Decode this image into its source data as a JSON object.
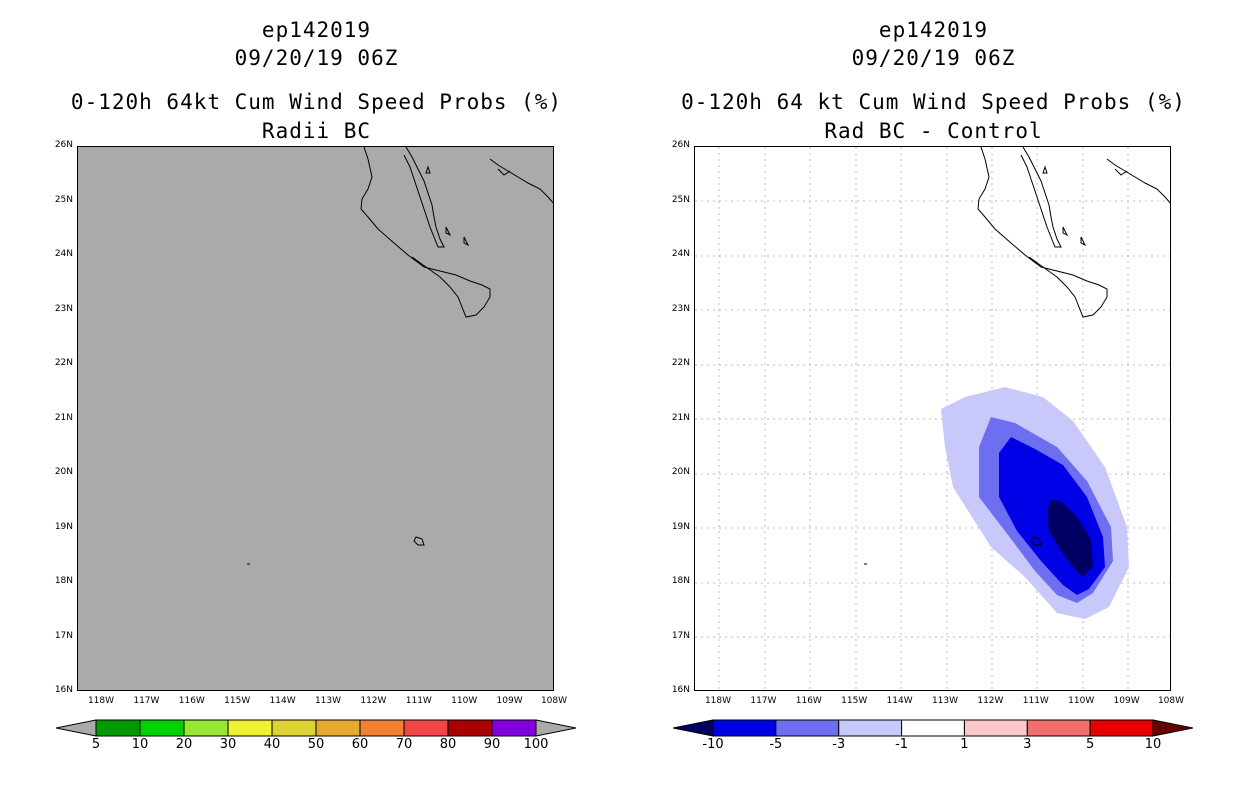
{
  "left": {
    "storm_id": "ep142019",
    "datetime": "09/20/19 06Z",
    "title": "0-120h 64kt Cum Wind Speed Probs (%)",
    "subtitle": "Radii BC",
    "colorbar_labels": [
      "5",
      "10",
      "20",
      "30",
      "40",
      "50",
      "60",
      "70",
      "80",
      "90",
      "100"
    ],
    "colorbar_colors": [
      "#009a00",
      "#00d200",
      "#96e632",
      "#f0f032",
      "#dcd232",
      "#e6aa32",
      "#f08232",
      "#f04646",
      "#aa0000",
      "#8200dc"
    ],
    "background_color": "#aaaaaa"
  },
  "right": {
    "storm_id": "ep142019",
    "datetime": "09/20/19 06Z",
    "title": "0-120h 64 kt Cum Wind Speed Probs (%)",
    "subtitle": "Rad BC - Control",
    "colorbar_labels": [
      "-10",
      "-5",
      "-3",
      "-1",
      "1",
      "3",
      "5",
      "10"
    ],
    "colorbar_colors": [
      "#0000e6",
      "#6e6ef0",
      "#c8c8fa",
      "#ffffff",
      "#fac8c8",
      "#f06e6e",
      "#e60000"
    ],
    "colorbar_end_low": "#000064",
    "colorbar_end_high": "#640000"
  },
  "axes": {
    "lat_labels": [
      "26N",
      "25N",
      "24N",
      "23N",
      "22N",
      "21N",
      "20N",
      "19N",
      "18N",
      "17N",
      "16N"
    ],
    "lon_labels": [
      "118W",
      "117W",
      "116W",
      "115W",
      "114W",
      "113W",
      "112W",
      "111W",
      "110W",
      "109W",
      "108W"
    ]
  }
}
